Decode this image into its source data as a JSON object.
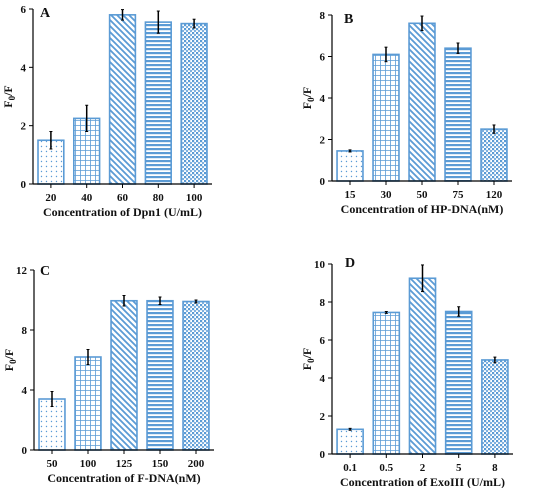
{
  "colors": {
    "bar": "#5b9bd5",
    "axis": "#000000",
    "error": "#000000"
  },
  "chart_data": [
    {
      "type": "bar",
      "panel": "A",
      "categories": [
        "20",
        "40",
        "60",
        "80",
        "100"
      ],
      "values": [
        1.5,
        2.25,
        5.8,
        5.55,
        5.5
      ],
      "errors": [
        0.3,
        0.45,
        0.18,
        0.38,
        0.15
      ],
      "xlabel": "Concentration of Dpn1 (U/mL)",
      "ylabel": "F0/F",
      "ylim": [
        0,
        6
      ],
      "yticks": [
        "0",
        "2",
        "4",
        "6"
      ],
      "patterns": [
        "dots",
        "grid",
        "diag",
        "hlines",
        "checker"
      ]
    },
    {
      "type": "bar",
      "panel": "B",
      "categories": [
        "15",
        "30",
        "50",
        "75",
        "120"
      ],
      "values": [
        1.45,
        6.1,
        7.6,
        6.4,
        2.5
      ],
      "errors": [
        0.05,
        0.35,
        0.35,
        0.25,
        0.2
      ],
      "xlabel": "Concentration of HP-DNA(nM)",
      "ylabel": "F0/F",
      "ylim": [
        0,
        8
      ],
      "yticks": [
        "0",
        "2",
        "4",
        "6",
        "8"
      ],
      "patterns": [
        "dots",
        "grid",
        "diag",
        "hlines",
        "checker"
      ]
    },
    {
      "type": "bar",
      "panel": "C",
      "categories": [
        "50",
        "100",
        "125",
        "150",
        "200"
      ],
      "values": [
        3.4,
        6.2,
        9.95,
        9.95,
        9.9
      ],
      "errors": [
        0.5,
        0.5,
        0.35,
        0.25,
        0.1
      ],
      "xlabel": "Concentration of F-DNA(nM)",
      "ylabel": "F0/F",
      "ylim": [
        0,
        12
      ],
      "yticks": [
        "0",
        "4",
        "8",
        "12"
      ],
      "patterns": [
        "dots",
        "grid",
        "diag",
        "hlines",
        "checker"
      ]
    },
    {
      "type": "bar",
      "panel": "D",
      "categories": [
        "0.1",
        "0.5",
        "2",
        "5",
        "8"
      ],
      "values": [
        1.3,
        7.45,
        9.25,
        7.5,
        4.95
      ],
      "errors": [
        0.05,
        0.05,
        0.7,
        0.25,
        0.15
      ],
      "xlabel": "Concentration of ExoIII (U/mL)",
      "ylabel": "F0/F",
      "ylim": [
        0,
        10
      ],
      "yticks": [
        "0",
        "2",
        "4",
        "6",
        "8",
        "10"
      ],
      "patterns": [
        "dots",
        "grid",
        "diag",
        "hlines",
        "checker"
      ]
    }
  ]
}
